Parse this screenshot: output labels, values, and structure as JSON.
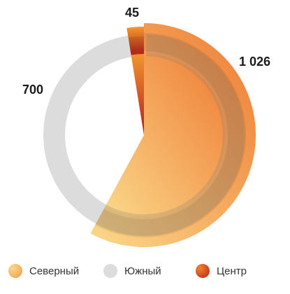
{
  "chart_data": {
    "type": "pie",
    "categories": [
      "Северный",
      "Южный",
      "Центр"
    ],
    "series": [
      {
        "values": [
          1026,
          700,
          45
        ]
      }
    ],
    "data_labels": [
      "1 026",
      "700",
      "45"
    ],
    "legend": {
      "position": "bottom",
      "items": [
        "Северный",
        "Южный",
        "Центр"
      ]
    },
    "colors": {
      "Северный": [
        "#f9d286",
        "#ee7f37"
      ],
      "Южный": [
        "#dcdcdc",
        "#dcdcdc"
      ],
      "Центр": [
        "#f08a2c",
        "#b5201c"
      ]
    }
  }
}
